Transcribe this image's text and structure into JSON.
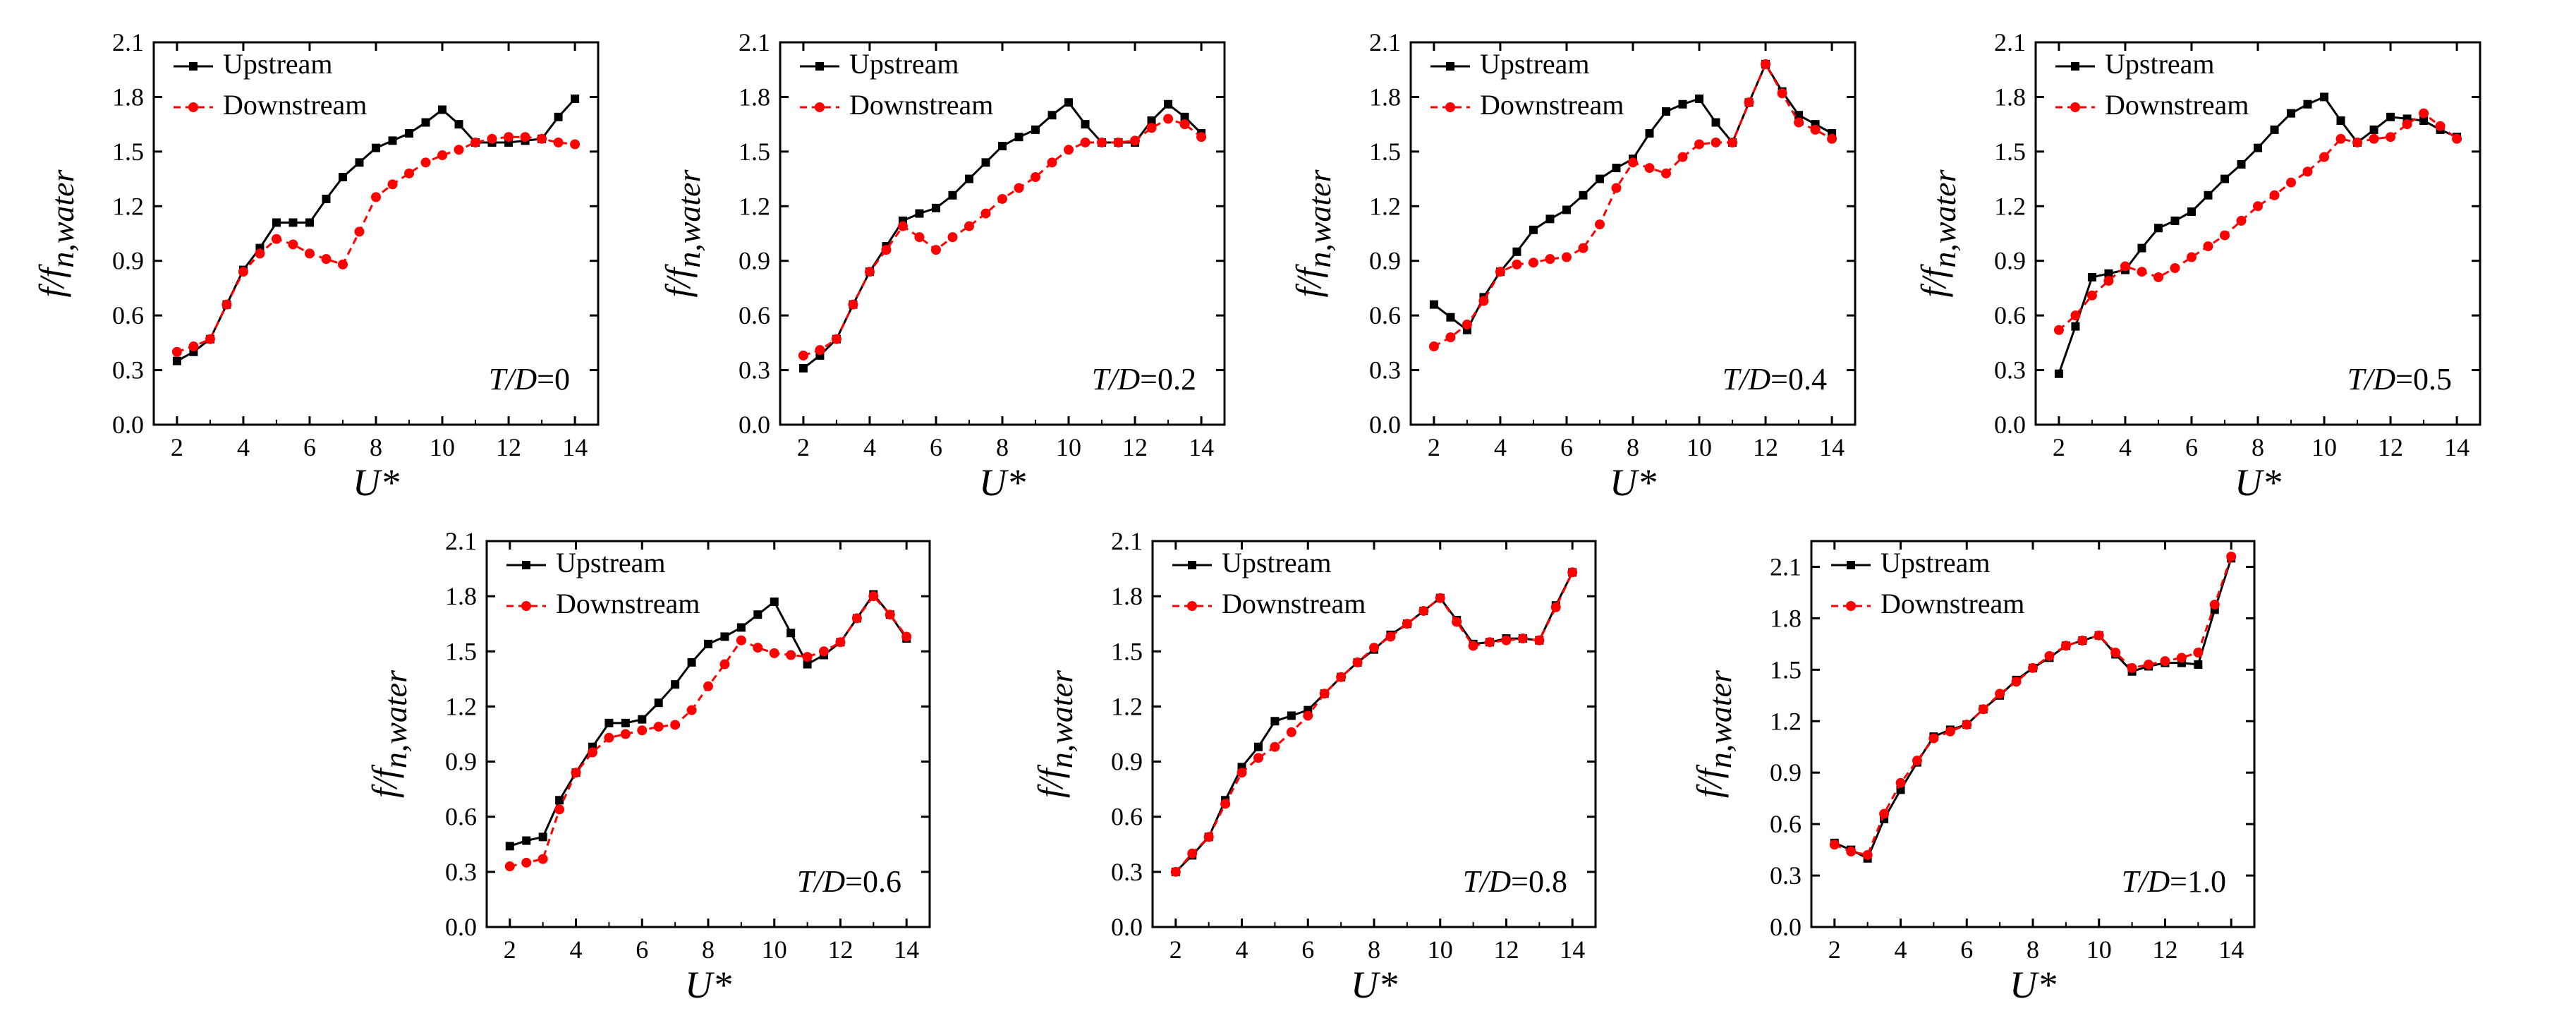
{
  "chart_data": [
    {
      "type": "line",
      "annotation": {
        "label": "T/D",
        "value": "=0"
      },
      "xlabel": "U*",
      "ylabel": {
        "main": "f/f",
        "sub": "n,water"
      },
      "xlim": [
        1.3,
        14.7
      ],
      "ylim": [
        0,
        2.1
      ],
      "xticks": [
        2,
        4,
        6,
        8,
        10,
        12,
        14
      ],
      "yticks": [
        "0.0",
        "0.3",
        "0.6",
        "0.9",
        "1.2",
        "1.5",
        "1.8",
        "2.1"
      ],
      "legend_position": "top-left",
      "series": [
        {
          "name": "Upstream",
          "color": "#000000",
          "marker": "square",
          "dash": "solid",
          "x": [
            2,
            2.5,
            3,
            3.5,
            4,
            4.5,
            5,
            5.5,
            6,
            6.5,
            7,
            7.5,
            8,
            8.5,
            9,
            9.5,
            10,
            10.5,
            11,
            11.5,
            12,
            12.5,
            13,
            13.5,
            14
          ],
          "y": [
            0.35,
            0.4,
            0.47,
            0.66,
            0.85,
            0.97,
            1.11,
            1.11,
            1.11,
            1.24,
            1.36,
            1.44,
            1.52,
            1.56,
            1.6,
            1.66,
            1.73,
            1.65,
            1.55,
            1.55,
            1.55,
            1.56,
            1.57,
            1.69,
            1.79
          ]
        },
        {
          "name": "Downstream",
          "color": "#ff0000",
          "marker": "circle",
          "dash": "dashed",
          "x": [
            2,
            2.5,
            3,
            3.5,
            4,
            4.5,
            5,
            5.5,
            6,
            6.5,
            7,
            7.5,
            8,
            8.5,
            9,
            9.5,
            10,
            10.5,
            11,
            11.5,
            12,
            12.5,
            13,
            13.5,
            14
          ],
          "y": [
            0.4,
            0.43,
            0.47,
            0.66,
            0.84,
            0.94,
            1.02,
            0.99,
            0.94,
            0.91,
            0.88,
            1.06,
            1.25,
            1.32,
            1.38,
            1.44,
            1.48,
            1.51,
            1.55,
            1.57,
            1.58,
            1.58,
            1.57,
            1.55,
            1.54
          ]
        }
      ]
    },
    {
      "type": "line",
      "annotation": {
        "label": "T/D",
        "value": "=0.2"
      },
      "xlabel": "U*",
      "ylabel": {
        "main": "f/f",
        "sub": "n,water"
      },
      "xlim": [
        1.3,
        14.7
      ],
      "ylim": [
        0,
        2.1
      ],
      "xticks": [
        2,
        4,
        6,
        8,
        10,
        12,
        14
      ],
      "yticks": [
        "0.0",
        "0.3",
        "0.6",
        "0.9",
        "1.2",
        "1.5",
        "1.8",
        "2.1"
      ],
      "legend_position": "top-left",
      "series": [
        {
          "name": "Upstream",
          "color": "#000000",
          "marker": "square",
          "dash": "solid",
          "x": [
            2,
            2.5,
            3,
            3.5,
            4,
            4.5,
            5,
            5.5,
            6,
            6.5,
            7,
            7.5,
            8,
            8.5,
            9,
            9.5,
            10,
            10.5,
            11,
            11.5,
            12,
            12.5,
            13,
            13.5,
            14
          ],
          "y": [
            0.31,
            0.38,
            0.47,
            0.66,
            0.84,
            0.98,
            1.12,
            1.16,
            1.19,
            1.26,
            1.35,
            1.44,
            1.53,
            1.58,
            1.62,
            1.7,
            1.77,
            1.65,
            1.55,
            1.55,
            1.55,
            1.67,
            1.76,
            1.69,
            1.6
          ]
        },
        {
          "name": "Downstream",
          "color": "#ff0000",
          "marker": "circle",
          "dash": "dashed",
          "x": [
            2,
            2.5,
            3,
            3.5,
            4,
            4.5,
            5,
            5.5,
            6,
            6.5,
            7,
            7.5,
            8,
            8.5,
            9,
            9.5,
            10,
            10.5,
            11,
            11.5,
            12,
            12.5,
            13,
            13.5,
            14
          ],
          "y": [
            0.38,
            0.41,
            0.47,
            0.66,
            0.84,
            0.96,
            1.09,
            1.03,
            0.96,
            1.03,
            1.09,
            1.16,
            1.24,
            1.3,
            1.36,
            1.44,
            1.51,
            1.55,
            1.55,
            1.55,
            1.56,
            1.63,
            1.68,
            1.65,
            1.58
          ]
        }
      ]
    },
    {
      "type": "line",
      "annotation": {
        "label": "T/D",
        "value": "=0.4"
      },
      "xlabel": "U*",
      "ylabel": {
        "main": "f/f",
        "sub": "n,water"
      },
      "xlim": [
        1.3,
        14.7
      ],
      "ylim": [
        0,
        2.1
      ],
      "xticks": [
        2,
        4,
        6,
        8,
        10,
        12,
        14
      ],
      "yticks": [
        "0.0",
        "0.3",
        "0.6",
        "0.9",
        "1.2",
        "1.5",
        "1.8",
        "2.1"
      ],
      "legend_position": "top-left",
      "series": [
        {
          "name": "Upstream",
          "color": "#000000",
          "marker": "square",
          "dash": "solid",
          "x": [
            2,
            2.5,
            3,
            3.5,
            4,
            4.5,
            5,
            5.5,
            6,
            6.5,
            7,
            7.5,
            8,
            8.5,
            9,
            9.5,
            10,
            10.5,
            11,
            11.5,
            12,
            12.5,
            13,
            13.5,
            14
          ],
          "y": [
            0.66,
            0.59,
            0.52,
            0.7,
            0.84,
            0.95,
            1.07,
            1.13,
            1.18,
            1.26,
            1.35,
            1.41,
            1.46,
            1.6,
            1.72,
            1.76,
            1.79,
            1.66,
            1.55,
            1.77,
            1.98,
            1.83,
            1.7,
            1.65,
            1.6
          ]
        },
        {
          "name": "Downstream",
          "color": "#ff0000",
          "marker": "circle",
          "dash": "dashed",
          "x": [
            2,
            2.5,
            3,
            3.5,
            4,
            4.5,
            5,
            5.5,
            6,
            6.5,
            7,
            7.5,
            8,
            8.5,
            9,
            9.5,
            10,
            10.5,
            11,
            11.5,
            12,
            12.5,
            13,
            13.5,
            14
          ],
          "y": [
            0.43,
            0.48,
            0.55,
            0.68,
            0.84,
            0.88,
            0.89,
            0.91,
            0.92,
            0.97,
            1.1,
            1.3,
            1.44,
            1.41,
            1.38,
            1.47,
            1.54,
            1.55,
            1.55,
            1.77,
            1.98,
            1.82,
            1.66,
            1.62,
            1.57
          ]
        }
      ]
    },
    {
      "type": "line",
      "annotation": {
        "label": "T/D",
        "value": "=0.5"
      },
      "xlabel": "U*",
      "ylabel": {
        "main": "f/f",
        "sub": "n,water"
      },
      "xlim": [
        1.3,
        14.7
      ],
      "ylim": [
        0,
        2.1
      ],
      "xticks": [
        2,
        4,
        6,
        8,
        10,
        12,
        14
      ],
      "yticks": [
        "0.0",
        "0.3",
        "0.6",
        "0.9",
        "1.2",
        "1.5",
        "1.8",
        "2.1"
      ],
      "legend_position": "top-left",
      "series": [
        {
          "name": "Upstream",
          "color": "#000000",
          "marker": "square",
          "dash": "solid",
          "x": [
            2,
            2.5,
            3,
            3.5,
            4,
            4.5,
            5,
            5.5,
            6,
            6.5,
            7,
            7.5,
            8,
            8.5,
            9,
            9.5,
            10,
            10.5,
            11,
            11.5,
            12,
            12.5,
            13,
            13.5,
            14
          ],
          "y": [
            0.28,
            0.54,
            0.81,
            0.83,
            0.85,
            0.97,
            1.08,
            1.12,
            1.17,
            1.26,
            1.35,
            1.43,
            1.52,
            1.62,
            1.71,
            1.76,
            1.8,
            1.67,
            1.55,
            1.62,
            1.69,
            1.68,
            1.67,
            1.62,
            1.58
          ]
        },
        {
          "name": "Downstream",
          "color": "#ff0000",
          "marker": "circle",
          "dash": "dashed",
          "x": [
            2,
            2.5,
            3,
            3.5,
            4,
            4.5,
            5,
            5.5,
            6,
            6.5,
            7,
            7.5,
            8,
            8.5,
            9,
            9.5,
            10,
            10.5,
            11,
            11.5,
            12,
            12.5,
            13,
            13.5,
            14
          ],
          "y": [
            0.52,
            0.6,
            0.71,
            0.79,
            0.87,
            0.84,
            0.81,
            0.86,
            0.92,
            0.98,
            1.04,
            1.12,
            1.2,
            1.26,
            1.33,
            1.39,
            1.47,
            1.57,
            1.55,
            1.57,
            1.58,
            1.65,
            1.71,
            1.64,
            1.57
          ]
        }
      ]
    },
    {
      "type": "line",
      "annotation": {
        "label": "T/D",
        "value": "=0.6"
      },
      "xlabel": "U*",
      "ylabel": {
        "main": "f/f",
        "sub": "n,water"
      },
      "xlim": [
        1.3,
        14.7
      ],
      "ylim": [
        0,
        2.1
      ],
      "xticks": [
        2,
        4,
        6,
        8,
        10,
        12,
        14
      ],
      "yticks": [
        "0.0",
        "0.3",
        "0.6",
        "0.9",
        "1.2",
        "1.5",
        "1.8",
        "2.1"
      ],
      "legend_position": "top-left",
      "series": [
        {
          "name": "Upstream",
          "color": "#000000",
          "marker": "square",
          "dash": "solid",
          "x": [
            2,
            2.5,
            3,
            3.5,
            4,
            4.5,
            5,
            5.5,
            6,
            6.5,
            7,
            7.5,
            8,
            8.5,
            9,
            9.5,
            10,
            10.5,
            11,
            11.5,
            12,
            12.5,
            13,
            13.5,
            14
          ],
          "y": [
            0.44,
            0.47,
            0.49,
            0.69,
            0.84,
            0.98,
            1.11,
            1.11,
            1.13,
            1.22,
            1.32,
            1.44,
            1.54,
            1.58,
            1.63,
            1.7,
            1.77,
            1.6,
            1.43,
            1.48,
            1.55,
            1.68,
            1.81,
            1.7,
            1.57
          ]
        },
        {
          "name": "Downstream",
          "color": "#ff0000",
          "marker": "circle",
          "dash": "dashed",
          "x": [
            2,
            2.5,
            3,
            3.5,
            4,
            4.5,
            5,
            5.5,
            6,
            6.5,
            7,
            7.5,
            8,
            8.5,
            9,
            9.5,
            10,
            10.5,
            11,
            11.5,
            12,
            12.5,
            13,
            13.5,
            14
          ],
          "y": [
            0.33,
            0.35,
            0.37,
            0.64,
            0.84,
            0.95,
            1.03,
            1.05,
            1.07,
            1.09,
            1.1,
            1.18,
            1.31,
            1.43,
            1.56,
            1.52,
            1.49,
            1.48,
            1.47,
            1.5,
            1.55,
            1.68,
            1.8,
            1.7,
            1.58
          ]
        }
      ]
    },
    {
      "type": "line",
      "annotation": {
        "label": "T/D",
        "value": "=0.8"
      },
      "xlabel": "U*",
      "ylabel": {
        "main": "f/f",
        "sub": "n,water"
      },
      "xlim": [
        1.3,
        14.7
      ],
      "ylim": [
        0,
        2.1
      ],
      "xticks": [
        2,
        4,
        6,
        8,
        10,
        12,
        14
      ],
      "yticks": [
        "0.0",
        "0.3",
        "0.6",
        "0.9",
        "1.2",
        "1.5",
        "1.8",
        "2.1"
      ],
      "legend_position": "top-left",
      "series": [
        {
          "name": "Upstream",
          "color": "#000000",
          "marker": "square",
          "dash": "solid",
          "x": [
            2,
            2.5,
            3,
            3.5,
            4,
            4.5,
            5,
            5.5,
            6,
            6.5,
            7,
            7.5,
            8,
            8.5,
            9,
            9.5,
            10,
            10.5,
            11,
            11.5,
            12,
            12.5,
            13,
            13.5,
            14
          ],
          "y": [
            0.3,
            0.39,
            0.49,
            0.69,
            0.87,
            0.98,
            1.12,
            1.15,
            1.18,
            1.27,
            1.36,
            1.44,
            1.51,
            1.59,
            1.65,
            1.72,
            1.79,
            1.67,
            1.54,
            1.55,
            1.57,
            1.57,
            1.56,
            1.75,
            1.93
          ]
        },
        {
          "name": "Downstream",
          "color": "#ff0000",
          "marker": "circle",
          "dash": "dashed",
          "x": [
            2,
            2.5,
            3,
            3.5,
            4,
            4.5,
            5,
            5.5,
            6,
            6.5,
            7,
            7.5,
            8,
            8.5,
            9,
            9.5,
            10,
            10.5,
            11,
            11.5,
            12,
            12.5,
            13,
            13.5,
            14
          ],
          "y": [
            0.3,
            0.4,
            0.49,
            0.67,
            0.84,
            0.92,
            0.98,
            1.06,
            1.15,
            1.27,
            1.36,
            1.44,
            1.52,
            1.58,
            1.65,
            1.72,
            1.79,
            1.66,
            1.53,
            1.55,
            1.56,
            1.57,
            1.56,
            1.74,
            1.93
          ]
        }
      ]
    },
    {
      "type": "line",
      "annotation": {
        "label": "T/D",
        "value": "=1.0"
      },
      "xlabel": "U*",
      "ylabel": {
        "main": "f/f",
        "sub": "n,water"
      },
      "xlim": [
        1.3,
        14.7
      ],
      "ylim": [
        0,
        2.25
      ],
      "xticks": [
        2,
        4,
        6,
        8,
        10,
        12,
        14
      ],
      "yticks": [
        "0.0",
        "0.3",
        "0.6",
        "0.9",
        "1.2",
        "1.5",
        "1.8",
        "2.1"
      ],
      "legend_position": "top-left",
      "series": [
        {
          "name": "Upstream",
          "color": "#000000",
          "marker": "square",
          "dash": "solid",
          "x": [
            2,
            2.5,
            3,
            3.5,
            4,
            4.5,
            5,
            5.5,
            6,
            6.5,
            7,
            7.5,
            8,
            8.5,
            9,
            9.5,
            10,
            10.5,
            11,
            11.5,
            12,
            12.5,
            13,
            13.5,
            14
          ],
          "y": [
            0.49,
            0.45,
            0.4,
            0.63,
            0.8,
            0.96,
            1.11,
            1.15,
            1.18,
            1.27,
            1.35,
            1.44,
            1.51,
            1.57,
            1.64,
            1.67,
            1.7,
            1.59,
            1.49,
            1.52,
            1.54,
            1.54,
            1.53,
            1.85,
            2.15
          ]
        },
        {
          "name": "Downstream",
          "color": "#ff0000",
          "marker": "circle",
          "dash": "dashed",
          "x": [
            2,
            2.5,
            3,
            3.5,
            4,
            4.5,
            5,
            5.5,
            6,
            6.5,
            7,
            7.5,
            8,
            8.5,
            9,
            9.5,
            10,
            10.5,
            11,
            11.5,
            12,
            12.5,
            13,
            13.5,
            14
          ],
          "y": [
            0.48,
            0.44,
            0.42,
            0.66,
            0.84,
            0.97,
            1.1,
            1.14,
            1.18,
            1.27,
            1.36,
            1.43,
            1.51,
            1.58,
            1.64,
            1.67,
            1.7,
            1.6,
            1.51,
            1.53,
            1.55,
            1.57,
            1.6,
            1.88,
            2.16
          ]
        }
      ]
    }
  ]
}
